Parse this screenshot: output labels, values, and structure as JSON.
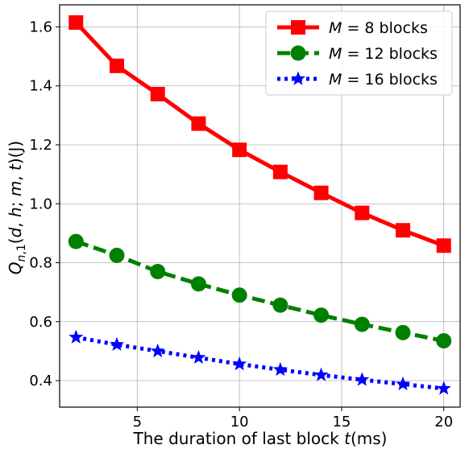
{
  "chart_data": {
    "type": "line",
    "title": "",
    "xlabel": "The duration of last block t(ms)",
    "ylabel": "Q_{n,1}(d,h;m,t)(J)",
    "xlim": [
      1.2,
      20.8
    ],
    "ylim": [
      0.31,
      1.675
    ],
    "xticks": [
      5,
      10,
      15,
      20
    ],
    "yticks": [
      0.4,
      0.6,
      0.8,
      1.0,
      1.2,
      1.4,
      1.6
    ],
    "xtick_labels": [
      "5",
      "10",
      "15",
      "20"
    ],
    "ytick_labels": [
      "0.4",
      "0.6",
      "0.8",
      "1.0",
      "1.2",
      "1.4",
      "1.6"
    ],
    "grid": true,
    "legend_position": "top-right",
    "x": [
      2,
      4,
      6,
      8,
      10,
      12,
      14,
      16,
      18,
      20
    ],
    "series": [
      {
        "name": "M = 8 blocks",
        "math": "M",
        "suffix": " = 8 blocks",
        "color": "#ff0000",
        "marker": "square",
        "linestyle": "solid",
        "values": [
          1.615,
          1.468,
          1.372,
          1.272,
          1.183,
          1.108,
          1.037,
          0.969,
          0.91,
          0.858
        ]
      },
      {
        "name": "M = 12 blocks",
        "math": "M",
        "suffix": " = 12 blocks",
        "color": "#008000",
        "marker": "circle",
        "linestyle": "dashed",
        "values": [
          0.872,
          0.825,
          0.77,
          0.728,
          0.69,
          0.656,
          0.622,
          0.591,
          0.563,
          0.535
        ]
      },
      {
        "name": "M = 16 blocks",
        "math": "M",
        "suffix": " = 16 blocks",
        "color": "#0000ff",
        "marker": "star",
        "linestyle": "dotted",
        "values": [
          0.547,
          0.522,
          0.5,
          0.478,
          0.456,
          0.437,
          0.419,
          0.403,
          0.388,
          0.373
        ]
      }
    ]
  }
}
